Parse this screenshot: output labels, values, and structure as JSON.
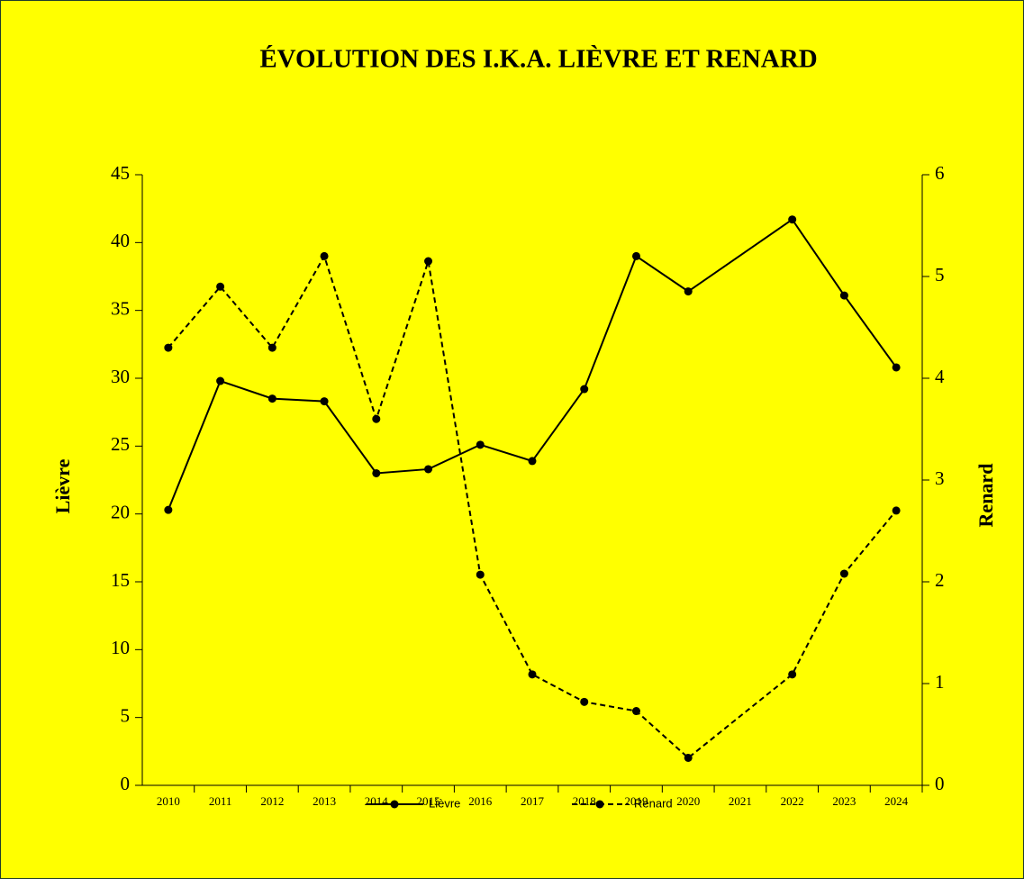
{
  "chart_data": {
    "type": "line",
    "title": "ÉVOLUTION DES I.K.A. LIÈVRE ET RENARD",
    "y_label": "Lièvre",
    "y2_label": "Renard",
    "x": [
      2010,
      2011,
      2012,
      2013,
      2014,
      2015,
      2016,
      2017,
      2018,
      2019,
      2020,
      2022,
      2023,
      2024
    ],
    "xlim": [
      2009.5,
      2024.5
    ],
    "xticks": [
      2010,
      2011,
      2012,
      2013,
      2014,
      2015,
      2016,
      2017,
      2018,
      2019,
      2020,
      2021,
      2022,
      2023,
      2024
    ],
    "ylim": [
      0,
      45
    ],
    "yticks": [
      0,
      5,
      10,
      15,
      20,
      25,
      30,
      35,
      40,
      45
    ],
    "y2lim": [
      0,
      6
    ],
    "y2ticks": [
      0,
      1,
      2,
      3,
      4,
      5,
      6
    ],
    "legend": "bottom",
    "series": [
      {
        "name": "Lièvre",
        "color": "#000000",
        "line_style": "solid",
        "values": [
          20.3,
          29.8,
          28.5,
          28.3,
          23.0,
          23.3,
          25.1,
          23.9,
          29.2,
          39.0,
          36.4,
          41.7,
          36.1,
          30.8
        ]
      },
      {
        "name": "Renard",
        "color": "#000000",
        "line_style": "dashed",
        "axis": "y2",
        "values": [
          4.3,
          4.9,
          4.3,
          5.2,
          3.6,
          5.15,
          2.07,
          1.09,
          0.82,
          0.73,
          0.27,
          1.09,
          2.08,
          2.7
        ]
      }
    ]
  }
}
